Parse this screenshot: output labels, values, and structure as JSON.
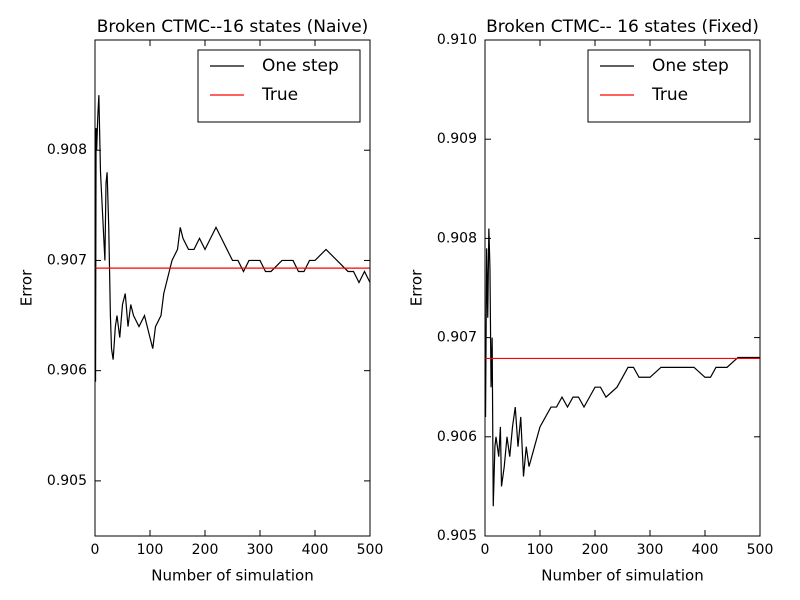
{
  "chart_data": [
    {
      "type": "line",
      "title": "Broken CTMC--16 states (Naive)",
      "xlabel": "Number of simulation",
      "ylabel": "Error",
      "x": [
        1,
        2,
        3,
        5,
        7,
        10,
        12,
        15,
        18,
        20,
        22,
        25,
        28,
        30,
        33,
        37,
        40,
        45,
        50,
        55,
        60,
        65,
        70,
        80,
        90,
        100,
        105,
        110,
        120,
        125,
        130,
        140,
        150,
        155,
        160,
        170,
        180,
        190,
        200,
        210,
        220,
        230,
        240,
        250,
        260,
        270,
        280,
        290,
        300,
        310,
        320,
        340,
        360,
        370,
        380,
        390,
        400,
        420,
        440,
        460,
        470,
        480,
        490,
        500
      ],
      "series": [
        {
          "name": "One step",
          "color": "#000000",
          "values": [
            0.9059,
            0.9082,
            0.908,
            0.9083,
            0.9085,
            0.9078,
            0.9076,
            0.9073,
            0.907,
            0.9077,
            0.9078,
            0.9073,
            0.9065,
            0.9062,
            0.9061,
            0.9064,
            0.9065,
            0.9063,
            0.9066,
            0.9067,
            0.9064,
            0.9066,
            0.9065,
            0.9064,
            0.9065,
            0.9063,
            0.9062,
            0.9064,
            0.9065,
            0.9067,
            0.9068,
            0.907,
            0.9071,
            0.9073,
            0.9072,
            0.9071,
            0.9071,
            0.9072,
            0.9071,
            0.9072,
            0.9073,
            0.9072,
            0.9071,
            0.907,
            0.907,
            0.9069,
            0.907,
            0.907,
            0.907,
            0.9069,
            0.9069,
            0.907,
            0.907,
            0.9069,
            0.9069,
            0.907,
            0.907,
            0.9071,
            0.907,
            0.9069,
            0.9069,
            0.9068,
            0.9069,
            0.9068
          ]
        },
        {
          "name": "True",
          "color": "#ff0000",
          "values": [
            0.90693,
            0.90693,
            0.90693,
            0.90693,
            0.90693,
            0.90693,
            0.90693,
            0.90693,
            0.90693,
            0.90693,
            0.90693,
            0.90693,
            0.90693,
            0.90693,
            0.90693,
            0.90693,
            0.90693,
            0.90693,
            0.90693,
            0.90693,
            0.90693,
            0.90693,
            0.90693,
            0.90693,
            0.90693,
            0.90693,
            0.90693,
            0.90693,
            0.90693,
            0.90693,
            0.90693,
            0.90693,
            0.90693,
            0.90693,
            0.90693,
            0.90693,
            0.90693,
            0.90693,
            0.90693,
            0.90693,
            0.90693,
            0.90693,
            0.90693,
            0.90693,
            0.90693,
            0.90693,
            0.90693,
            0.90693,
            0.90693,
            0.90693,
            0.90693,
            0.90693,
            0.90693,
            0.90693,
            0.90693,
            0.90693,
            0.90693,
            0.90693,
            0.90693,
            0.90693,
            0.90693,
            0.90693,
            0.90693,
            0.90693
          ]
        }
      ],
      "xlim": [
        0,
        500
      ],
      "xticks": [
        0,
        100,
        200,
        300,
        400,
        500
      ],
      "ylim": [
        0.9045,
        0.909
      ],
      "yticks": [
        0.905,
        0.906,
        0.907,
        0.908
      ],
      "legend": "upper right"
    },
    {
      "type": "line",
      "title": "Broken CTMC-- 16 states (Fixed)",
      "xlabel": "Number of simulation",
      "ylabel": "Error",
      "x": [
        1,
        3,
        5,
        7,
        9,
        11,
        13,
        15,
        18,
        20,
        25,
        28,
        30,
        35,
        40,
        45,
        50,
        55,
        60,
        65,
        70,
        75,
        80,
        90,
        100,
        110,
        120,
        130,
        140,
        150,
        160,
        170,
        180,
        190,
        200,
        210,
        220,
        240,
        250,
        260,
        270,
        280,
        300,
        320,
        340,
        360,
        380,
        400,
        410,
        420,
        440,
        460,
        480,
        490,
        500
      ],
      "series": [
        {
          "name": "One step",
          "color": "#000000",
          "values": [
            0.9062,
            0.9079,
            0.9072,
            0.9081,
            0.9077,
            0.9065,
            0.907,
            0.9053,
            0.9059,
            0.906,
            0.9058,
            0.9061,
            0.9055,
            0.9057,
            0.906,
            0.9058,
            0.9061,
            0.9063,
            0.9059,
            0.9062,
            0.9056,
            0.9059,
            0.9057,
            0.9059,
            0.9061,
            0.9062,
            0.9063,
            0.9063,
            0.9064,
            0.9063,
            0.9064,
            0.9064,
            0.9063,
            0.9064,
            0.9065,
            0.9065,
            0.9064,
            0.9065,
            0.9066,
            0.9067,
            0.9067,
            0.9066,
            0.9066,
            0.9067,
            0.9067,
            0.9067,
            0.9067,
            0.9066,
            0.9066,
            0.9067,
            0.9067,
            0.9068,
            0.9068,
            0.9068,
            0.9068
          ]
        },
        {
          "name": "True",
          "color": "#ff0000",
          "values": [
            0.90679,
            0.90679,
            0.90679,
            0.90679,
            0.90679,
            0.90679,
            0.90679,
            0.90679,
            0.90679,
            0.90679,
            0.90679,
            0.90679,
            0.90679,
            0.90679,
            0.90679,
            0.90679,
            0.90679,
            0.90679,
            0.90679,
            0.90679,
            0.90679,
            0.90679,
            0.90679,
            0.90679,
            0.90679,
            0.90679,
            0.90679,
            0.90679,
            0.90679,
            0.90679,
            0.90679,
            0.90679,
            0.90679,
            0.90679,
            0.90679,
            0.90679,
            0.90679,
            0.90679,
            0.90679,
            0.90679,
            0.90679,
            0.90679,
            0.90679,
            0.90679,
            0.90679,
            0.90679,
            0.90679,
            0.90679,
            0.90679,
            0.90679,
            0.90679,
            0.90679,
            0.90679,
            0.90679,
            0.90679
          ]
        }
      ],
      "xlim": [
        0,
        500
      ],
      "xticks": [
        0,
        100,
        200,
        300,
        400,
        500
      ],
      "ylim": [
        0.905,
        0.91
      ],
      "yticks": [
        0.905,
        0.906,
        0.907,
        0.908,
        0.909,
        {
          "value": 0.91,
          "label": "0.910"
        }
      ],
      "legend": "upper right"
    }
  ]
}
